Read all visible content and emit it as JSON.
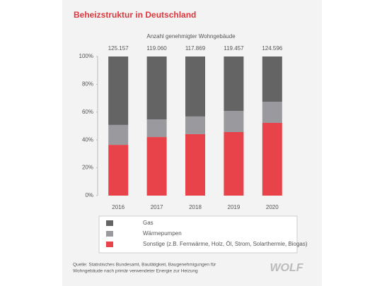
{
  "chart_data": {
    "type": "stacked_bar",
    "title": "Beheizstruktur in Deutschland",
    "subtitle": "Anzahl genehmigter Wohngebäude",
    "categories": [
      "2016",
      "2017",
      "2018",
      "2019",
      "2020"
    ],
    "bar_annotations": [
      "125.157",
      "119.060",
      "117.869",
      "119.457",
      "124.596"
    ],
    "series": [
      {
        "name": "Sonstige (z.B. Fernwärme, Holz, Öl, Strom, Solarthermie, Biogas)",
        "color": "#e8434a",
        "values": [
          36.5,
          42.1,
          44.2,
          45.7,
          52.3
        ]
      },
      {
        "name": "Wärmepumpen",
        "color": "#9a9a9e",
        "values": [
          14.3,
          12.7,
          12.7,
          15.2,
          15.2
        ]
      },
      {
        "name": "Gas",
        "color": "#646464",
        "values": [
          49.2,
          45.2,
          43.1,
          39.1,
          32.5
        ]
      }
    ],
    "ylim": [
      0,
      100
    ],
    "yticks": [
      {
        "value": 0,
        "label": "0%"
      },
      {
        "value": 20,
        "label": "20%"
      },
      {
        "value": 40,
        "label": "40%"
      },
      {
        "value": 60,
        "label": "60%"
      },
      {
        "value": 80,
        "label": "80%"
      },
      {
        "value": 100,
        "label": "100%"
      }
    ],
    "grid": false,
    "source": [
      "Quelle: Statistisches Bundesamt, Bautätigkeit, Baugenehmigungen für",
      "Wohngebäude nach primär verwendeter Energie zur Heizung"
    ],
    "logo": "WOLF"
  }
}
